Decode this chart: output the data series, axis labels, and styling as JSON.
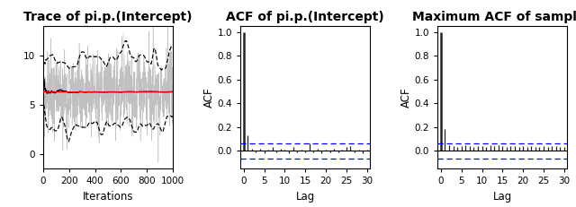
{
  "title1": "Trace of pi.p.(Intercept)",
  "title2": "ACF of pi.p.(Intercept)",
  "title3": "Maximum ACF of samples",
  "xlabel1": "Iterations",
  "xlabel2": "Lag",
  "xlabel3": "Lag",
  "ylabel2": "ACF",
  "ylabel3": "ACF",
  "trace_n": 1000,
  "trace_mean": 6.2,
  "trace_sd": 1.9,
  "trace_ylim": [
    -1.5,
    13
  ],
  "trace_yticks": [
    0,
    5,
    10
  ],
  "trace_xticks": [
    0,
    200,
    400,
    600,
    800,
    1000
  ],
  "acf_ylim": [
    -0.15,
    1.05
  ],
  "acf_yticks": [
    0.0,
    0.2,
    0.4,
    0.6,
    0.8,
    1.0
  ],
  "acf_lag_max": 30,
  "acf_conf": 0.065,
  "acf_conf_neg": -0.065,
  "acf2_values": [
    1.0,
    0.13,
    0.02,
    -0.01,
    0.02,
    -0.02,
    0.01,
    0.03,
    -0.01,
    0.02,
    0.01,
    -0.02,
    0.03,
    -0.01,
    0.01,
    -0.01,
    0.06,
    -0.01,
    0.02,
    -0.02,
    0.01,
    -0.01,
    0.02,
    -0.01,
    0.01,
    0.03,
    0.04,
    -0.01,
    0.01,
    -0.02,
    0.01
  ],
  "acf3_values": [
    1.0,
    0.18,
    0.05,
    0.04,
    0.03,
    0.04,
    0.05,
    0.04,
    0.03,
    0.04,
    0.04,
    0.03,
    0.05,
    0.04,
    0.05,
    0.04,
    0.03,
    0.04,
    0.04,
    0.03,
    0.04,
    0.03,
    0.04,
    0.03,
    0.03,
    0.04,
    0.03,
    0.04,
    0.04,
    0.03,
    0.03
  ],
  "bg_color": "white",
  "trace_color": "#c0c0c0",
  "mean_color": "black",
  "red_color": "red",
  "dashed_color": "black",
  "conf_color": "blue",
  "bar_color": "#222222",
  "title_fontsize": 10,
  "axis_fontsize": 8.5,
  "tick_fontsize": 7.5
}
